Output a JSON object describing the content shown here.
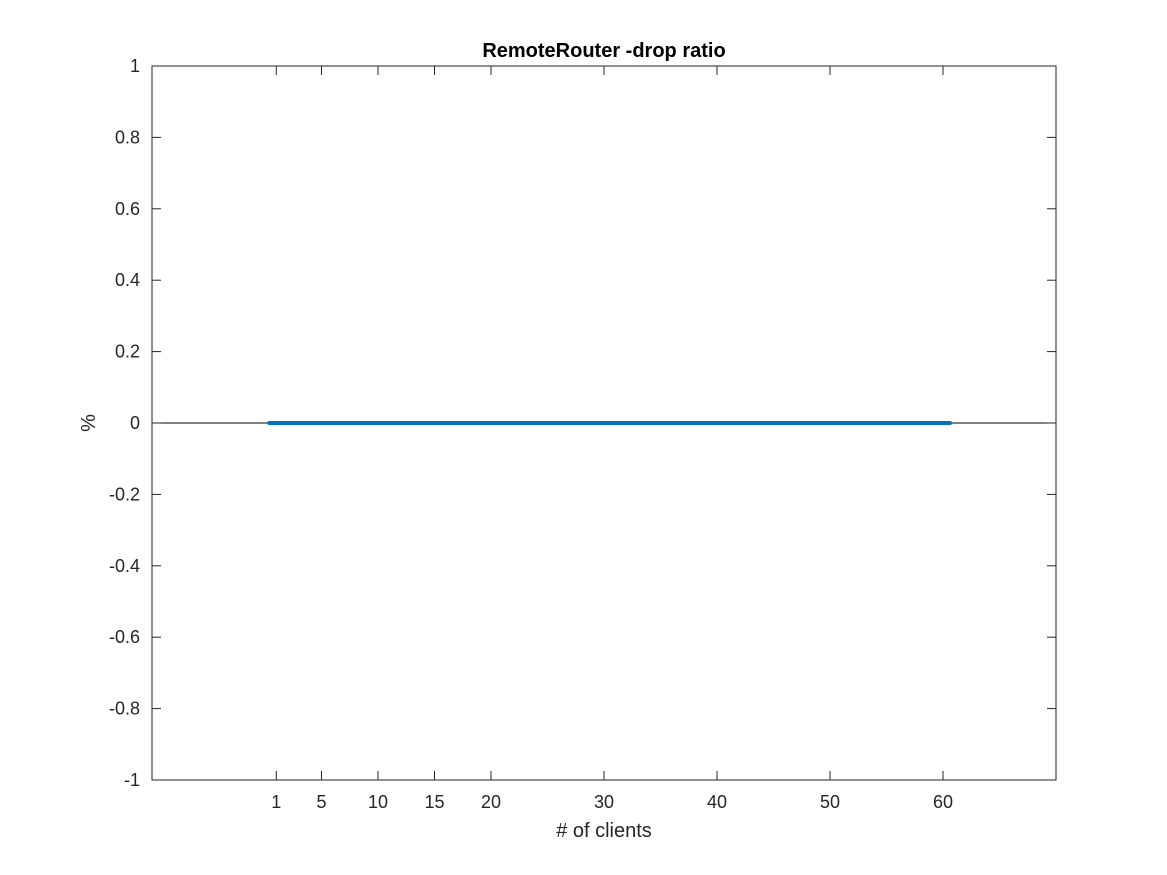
{
  "chart_data": {
    "type": "line",
    "title": "RemoteRouter -drop ratio",
    "xlabel": "# of clients",
    "ylabel": "%",
    "xlim": [
      -10,
      70
    ],
    "ylim": [
      -1,
      1
    ],
    "xticks": [
      1,
      5,
      10,
      15,
      20,
      30,
      40,
      50,
      60
    ],
    "xtick_labels": [
      "1",
      "5",
      "10",
      "15",
      "20",
      "30",
      "40",
      "50",
      "60"
    ],
    "yticks": [
      -1,
      -0.8,
      -0.6,
      -0.4,
      -0.2,
      0,
      0.2,
      0.4,
      0.6,
      0.8,
      1
    ],
    "ytick_labels": [
      "-1",
      "-0.8",
      "-0.6",
      "-0.4",
      "-0.2",
      "0",
      "0.2",
      "0.4",
      "0.6",
      "0.8",
      "1"
    ],
    "grid": false,
    "zero_line": true,
    "series": [
      {
        "x": [
          1,
          5,
          10,
          15,
          20,
          30,
          40,
          50,
          60
        ],
        "values": [
          0,
          0,
          0,
          0,
          0,
          0,
          0,
          0,
          0
        ],
        "color": "#0072BD"
      }
    ]
  }
}
